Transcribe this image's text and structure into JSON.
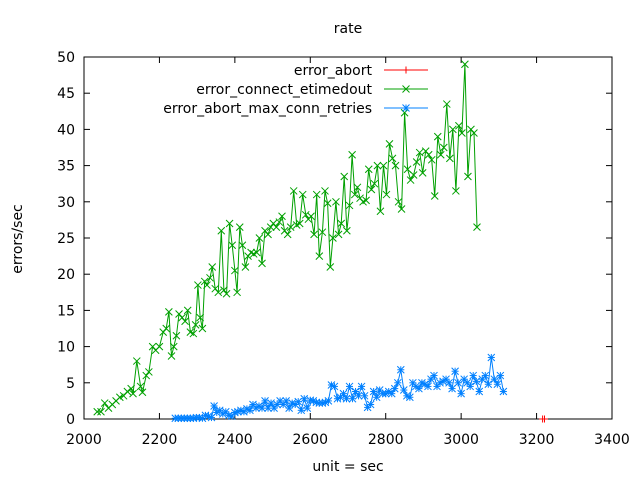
{
  "chart_data": {
    "type": "line",
    "title": "rate",
    "xlabel": "unit = sec",
    "ylabel": "errors/sec",
    "xlim": [
      2000,
      3400
    ],
    "ylim": [
      0,
      50
    ],
    "xticks": [
      2000,
      2200,
      2400,
      2600,
      2800,
      3000,
      3200,
      3400
    ],
    "yticks": [
      0,
      5,
      10,
      15,
      20,
      25,
      30,
      35,
      40,
      45,
      50
    ],
    "grid": false,
    "legend_position": "top-right",
    "series": [
      {
        "name": "error_abort",
        "color": "#ff0000",
        "marker": "plus",
        "points": [
          [
            3216,
            0
          ],
          [
            3221,
            0
          ]
        ]
      },
      {
        "name": "error_connect_etimedout",
        "color": "#00a000",
        "marker": "x",
        "points": [
          [
            2035,
            1
          ],
          [
            2045,
            1
          ],
          [
            2055,
            2.2
          ],
          [
            2065,
            1.5
          ],
          [
            2075,
            2
          ],
          [
            2085,
            2.5
          ],
          [
            2095,
            3
          ],
          [
            2105,
            3.2
          ],
          [
            2115,
            3.8
          ],
          [
            2125,
            4.2
          ],
          [
            2130,
            3.5
          ],
          [
            2140,
            8
          ],
          [
            2150,
            4.5
          ],
          [
            2155,
            3.7
          ],
          [
            2165,
            6
          ],
          [
            2172,
            6.5
          ],
          [
            2182,
            10
          ],
          [
            2190,
            9.5
          ],
          [
            2200,
            10
          ],
          [
            2210,
            12
          ],
          [
            2218,
            12.5
          ],
          [
            2225,
            14.8
          ],
          [
            2232,
            8.7
          ],
          [
            2238,
            10
          ],
          [
            2245,
            11.5
          ],
          [
            2252,
            14.5
          ],
          [
            2260,
            14
          ],
          [
            2268,
            13.5
          ],
          [
            2275,
            15
          ],
          [
            2282,
            12
          ],
          [
            2290,
            11.8
          ],
          [
            2296,
            13
          ],
          [
            2302,
            18.5
          ],
          [
            2308,
            14
          ],
          [
            2314,
            12.5
          ],
          [
            2320,
            19
          ],
          [
            2326,
            18.5
          ],
          [
            2334,
            19.5
          ],
          [
            2340,
            21
          ],
          [
            2348,
            18
          ],
          [
            2356,
            17.5
          ],
          [
            2364,
            26
          ],
          [
            2371,
            17.8
          ],
          [
            2378,
            17.3
          ],
          [
            2386,
            27
          ],
          [
            2393,
            24
          ],
          [
            2400,
            20.5
          ],
          [
            2406,
            17.5
          ],
          [
            2413,
            26.5
          ],
          [
            2420,
            24
          ],
          [
            2428,
            21
          ],
          [
            2435,
            22.5
          ],
          [
            2443,
            23
          ],
          [
            2450,
            22.8
          ],
          [
            2458,
            23
          ],
          [
            2465,
            25
          ],
          [
            2472,
            21.5
          ],
          [
            2480,
            26
          ],
          [
            2488,
            25.5
          ],
          [
            2495,
            26.5
          ],
          [
            2502,
            27
          ],
          [
            2510,
            26.5
          ],
          [
            2518,
            27.2
          ],
          [
            2525,
            28
          ],
          [
            2532,
            26
          ],
          [
            2540,
            25.5
          ],
          [
            2548,
            26.5
          ],
          [
            2556,
            31.5
          ],
          [
            2564,
            26.8
          ],
          [
            2572,
            27
          ],
          [
            2580,
            31
          ],
          [
            2588,
            28.2
          ],
          [
            2595,
            27.6
          ],
          [
            2602,
            28
          ],
          [
            2610,
            25.5
          ],
          [
            2617,
            31
          ],
          [
            2624,
            22.5
          ],
          [
            2632,
            25.8
          ],
          [
            2639,
            31.5
          ],
          [
            2646,
            29.8
          ],
          [
            2653,
            21
          ],
          [
            2660,
            25
          ],
          [
            2668,
            30
          ],
          [
            2675,
            25.5
          ],
          [
            2682,
            27
          ],
          [
            2690,
            33.5
          ],
          [
            2697,
            26
          ],
          [
            2704,
            29.5
          ],
          [
            2711,
            36.5
          ],
          [
            2718,
            31
          ],
          [
            2725,
            32
          ],
          [
            2732,
            30.5
          ],
          [
            2740,
            30
          ],
          [
            2748,
            30.2
          ],
          [
            2755,
            34.5
          ],
          [
            2762,
            31.7
          ],
          [
            2770,
            32.5
          ],
          [
            2778,
            35
          ],
          [
            2786,
            28.7
          ],
          [
            2794,
            35
          ],
          [
            2802,
            31
          ],
          [
            2810,
            38
          ],
          [
            2818,
            36
          ],
          [
            2826,
            35
          ],
          [
            2834,
            30
          ],
          [
            2842,
            29
          ],
          [
            2850,
            42.3
          ],
          [
            2858,
            34.5
          ],
          [
            2866,
            33
          ],
          [
            2874,
            33.7
          ],
          [
            2882,
            35.5
          ],
          [
            2890,
            36.8
          ],
          [
            2898,
            34
          ],
          [
            2906,
            37
          ],
          [
            2914,
            36.5
          ],
          [
            2922,
            35.8
          ],
          [
            2930,
            30.8
          ],
          [
            2938,
            39
          ],
          [
            2946,
            36.5
          ],
          [
            2954,
            37.5
          ],
          [
            2962,
            43.5
          ],
          [
            2970,
            36
          ],
          [
            2978,
            40
          ],
          [
            2986,
            31.5
          ],
          [
            2994,
            40.5
          ],
          [
            3002,
            39.5
          ],
          [
            3010,
            49
          ],
          [
            3018,
            33.5
          ],
          [
            3026,
            40
          ],
          [
            3034,
            39.5
          ],
          [
            3042,
            26.5
          ]
        ]
      },
      {
        "name": "error_abort_max_conn_retries",
        "color": "#0080ff",
        "marker": "star",
        "points": [
          [
            2242,
            0.1
          ],
          [
            2250,
            0.1
          ],
          [
            2258,
            0.1
          ],
          [
            2266,
            0.1
          ],
          [
            2274,
            0.1
          ],
          [
            2282,
            0.1
          ],
          [
            2290,
            0.1
          ],
          [
            2298,
            0.2
          ],
          [
            2306,
            0.2
          ],
          [
            2314,
            0.1
          ],
          [
            2322,
            0.5
          ],
          [
            2330,
            0.4
          ],
          [
            2338,
            0.2
          ],
          [
            2345,
            1.8
          ],
          [
            2352,
            0.9
          ],
          [
            2360,
            1.2
          ],
          [
            2368,
            0.7
          ],
          [
            2376,
            1
          ],
          [
            2384,
            0.5
          ],
          [
            2392,
            0.4
          ],
          [
            2400,
            0.9
          ],
          [
            2408,
            1
          ],
          [
            2416,
            1.2
          ],
          [
            2424,
            1
          ],
          [
            2432,
            1.4
          ],
          [
            2440,
            1.2
          ],
          [
            2448,
            2
          ],
          [
            2456,
            1.5
          ],
          [
            2464,
            1.8
          ],
          [
            2472,
            1.5
          ],
          [
            2480,
            2.5
          ],
          [
            2488,
            1.5
          ],
          [
            2496,
            2.2
          ],
          [
            2504,
            1.5
          ],
          [
            2512,
            2
          ],
          [
            2520,
            2.5
          ],
          [
            2528,
            2
          ],
          [
            2536,
            2.5
          ],
          [
            2544,
            1.5
          ],
          [
            2552,
            2.2
          ],
          [
            2560,
            2
          ],
          [
            2568,
            2.4
          ],
          [
            2576,
            1.2
          ],
          [
            2584,
            2.8
          ],
          [
            2592,
            1.5
          ],
          [
            2600,
            2.6
          ],
          [
            2608,
            2.5
          ],
          [
            2616,
            2.3
          ],
          [
            2624,
            2.2
          ],
          [
            2632,
            2.2
          ],
          [
            2640,
            2.3
          ],
          [
            2648,
            2.5
          ],
          [
            2656,
            4.7
          ],
          [
            2664,
            4.5
          ],
          [
            2672,
            2.8
          ],
          [
            2680,
            3
          ],
          [
            2688,
            3.5
          ],
          [
            2696,
            2.8
          ],
          [
            2704,
            4.5
          ],
          [
            2712,
            2.8
          ],
          [
            2720,
            3.8
          ],
          [
            2728,
            3.2
          ],
          [
            2736,
            4.5
          ],
          [
            2744,
            3.2
          ],
          [
            2752,
            1.6
          ],
          [
            2760,
            2
          ],
          [
            2768,
            3.8
          ],
          [
            2776,
            3
          ],
          [
            2784,
            4
          ],
          [
            2792,
            3.5
          ],
          [
            2800,
            3.5
          ],
          [
            2808,
            3.8
          ],
          [
            2816,
            3.5
          ],
          [
            2824,
            4.2
          ],
          [
            2832,
            5
          ],
          [
            2840,
            6.8
          ],
          [
            2848,
            4
          ],
          [
            2856,
            3.2
          ],
          [
            2864,
            3
          ],
          [
            2872,
            5
          ],
          [
            2880,
            4.5
          ],
          [
            2888,
            4.2
          ],
          [
            2896,
            5
          ],
          [
            2904,
            4.8
          ],
          [
            2912,
            4.5
          ],
          [
            2920,
            5.5
          ],
          [
            2928,
            6
          ],
          [
            2936,
            4.5
          ],
          [
            2944,
            5
          ],
          [
            2952,
            5.2
          ],
          [
            2960,
            5.5
          ],
          [
            2968,
            5
          ],
          [
            2976,
            4.2
          ],
          [
            2984,
            6.6
          ],
          [
            2992,
            5
          ],
          [
            3000,
            3.5
          ],
          [
            3008,
            5.5
          ],
          [
            3016,
            5
          ],
          [
            3024,
            4.5
          ],
          [
            3032,
            6
          ],
          [
            3040,
            5.2
          ],
          [
            3048,
            3.8
          ],
          [
            3056,
            5.5
          ],
          [
            3064,
            6
          ],
          [
            3072,
            4.8
          ],
          [
            3080,
            8.5
          ],
          [
            3088,
            5.5
          ],
          [
            3096,
            4.8
          ],
          [
            3104,
            6
          ],
          [
            3112,
            3.8
          ]
        ]
      }
    ]
  }
}
